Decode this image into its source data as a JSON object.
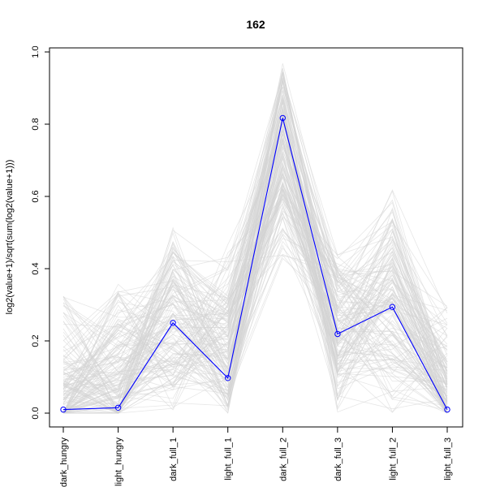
{
  "chart_data": {
    "type": "line",
    "title": "162",
    "xlabel": "",
    "ylabel": "log2(value+1)/sqrt(sum(log2(value+1)))",
    "categories": [
      "dark_hungry",
      "light_hungry",
      "dark_full_1",
      "light_full_1",
      "dark_full_2",
      "dark_full_3",
      "light_full_2",
      "light_full_3"
    ],
    "ylim": [
      0.0,
      1.0
    ],
    "yticks": [
      "0.0",
      "0.2",
      "0.4",
      "0.6",
      "0.8",
      "1.0"
    ],
    "grid": false,
    "series": [
      {
        "values": [
          0.01,
          0.015,
          0.25,
          0.097,
          0.817,
          0.219,
          0.294,
          0.01
        ],
        "color": "#0000ff",
        "marker": "open-circle"
      }
    ],
    "background_profiles": {
      "color": "#d3d3d3",
      "count": 150
    }
  }
}
